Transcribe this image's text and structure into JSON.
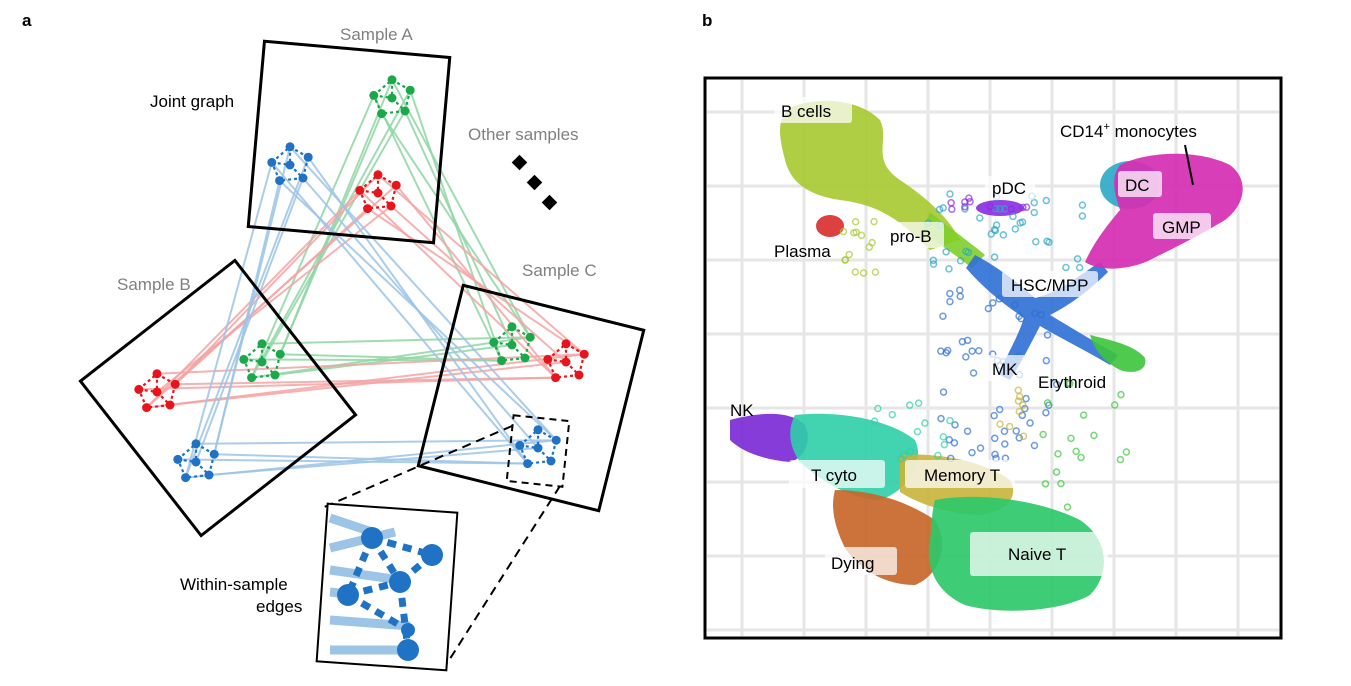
{
  "panel_a": {
    "letter": "a",
    "sample_a": "Sample A",
    "sample_b": "Sample B",
    "sample_c": "Sample C",
    "joint_graph": "Joint graph",
    "other_samples": "Other samples",
    "within_sample_line1": "Within-sample",
    "within_sample_line2": "edges"
  },
  "panel_b": {
    "letter": "b",
    "labels": {
      "b_cells": "B cells",
      "cd14_main": "CD14",
      "cd14_sup": "+",
      "cd14_rest": " monocytes",
      "pdc": "pDC",
      "dc": "DC",
      "gmp": "GMP",
      "plasma": "Plasma",
      "pro_b": "pro-B",
      "hsc_mpp": "HSC/MPP",
      "mk": "MK",
      "erythroid": "Erythroid",
      "nk": "NK",
      "t_cyto": "T cyto",
      "memory_t": "Memory T",
      "dying": "Dying",
      "naive_t": "Naive T"
    }
  },
  "colors": {
    "green": "#1aa84a",
    "red": "#e8141c",
    "blue": "#1f72c4",
    "green_edge": "#8fd6a3",
    "red_edge": "#f5a3a3",
    "blue_edge": "#9cc4e6",
    "b_cells": "#a6c930",
    "monocytes": "#d62eb3",
    "dc": "#2aa8c8",
    "pdc": "#8a2be2",
    "plasma": "#d92b2b",
    "pro_b": "#7fcf2a",
    "hsc": "#2e6fd6",
    "erythroid": "#3cc43c",
    "nk": "#7c2bd6",
    "t_cyto": "#2ecfa8",
    "memory_t": "#c8b43a",
    "dying": "#c8672a",
    "naive_t": "#2ec86a"
  }
}
